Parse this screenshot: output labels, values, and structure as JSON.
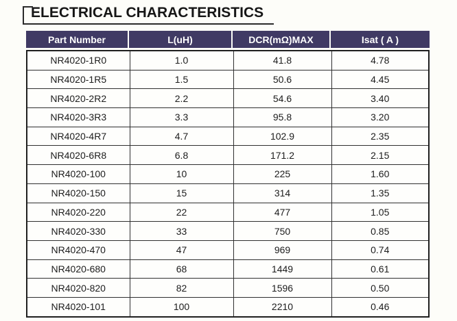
{
  "page": {
    "title": "ELECTRICAL CHARACTERISTICS"
  },
  "table": {
    "columns": [
      "Part Number",
      "L(uH)",
      "DCR(mΩ)MAX",
      "Isat ( A )"
    ],
    "rows": [
      [
        "NR4020-1R0",
        "1.0",
        "41.8",
        "4.78"
      ],
      [
        "NR4020-1R5",
        "1.5",
        "50.6",
        "4.45"
      ],
      [
        "NR4020-2R2",
        "2.2",
        "54.6",
        "3.40"
      ],
      [
        "NR4020-3R3",
        "3.3",
        "95.8",
        "3.20"
      ],
      [
        "NR4020-4R7",
        "4.7",
        "102.9",
        "2.35"
      ],
      [
        "NR4020-6R8",
        "6.8",
        "171.2",
        "2.15"
      ],
      [
        "NR4020-100",
        "10",
        "225",
        "1.60"
      ],
      [
        "NR4020-150",
        "15",
        "314",
        "1.35"
      ],
      [
        "NR4020-220",
        "22",
        "477",
        "1.05"
      ],
      [
        "NR4020-330",
        "33",
        "750",
        "0.85"
      ],
      [
        "NR4020-470",
        "47",
        "969",
        "0.74"
      ],
      [
        "NR4020-680",
        "68",
        "1449",
        "0.61"
      ],
      [
        "NR4020-820",
        "82",
        "1596",
        "0.50"
      ],
      [
        "NR4020-101",
        "100",
        "2210",
        "0.46"
      ]
    ]
  },
  "colors": {
    "header_bg": "#403a64",
    "header_text": "#ffffff",
    "body_text": "#1c1c1c",
    "border": "#2e2e2e",
    "title_text": "#161616",
    "page_bg": "#fdfdf9"
  }
}
